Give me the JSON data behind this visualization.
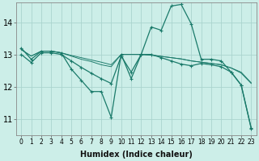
{
  "xlabel": "Humidex (Indice chaleur)",
  "bg_color": "#cceee8",
  "grid_color": "#aad4ce",
  "line_color": "#1a7a6a",
  "xlim": [
    -0.5,
    23.5
  ],
  "ylim": [
    10.5,
    14.6
  ],
  "yticks": [
    11,
    12,
    13,
    14
  ],
  "xticks": [
    0,
    1,
    2,
    3,
    4,
    5,
    6,
    7,
    8,
    9,
    10,
    11,
    12,
    13,
    14,
    15,
    16,
    17,
    18,
    19,
    20,
    21,
    22,
    23
  ],
  "series": {
    "line1": [
      13.2,
      12.85,
      13.1,
      13.1,
      13.05,
      12.55,
      12.2,
      11.85,
      11.85,
      11.05,
      13.0,
      12.25,
      13.0,
      13.85,
      13.75,
      14.5,
      14.55,
      13.95,
      12.85,
      12.85,
      12.8,
      12.45,
      12.05,
      10.7
    ],
    "line2": [
      13.15,
      12.95,
      13.1,
      13.1,
      13.05,
      12.95,
      12.85,
      12.78,
      12.68,
      12.62,
      13.0,
      13.0,
      13.0,
      12.98,
      12.94,
      12.9,
      12.86,
      12.8,
      12.76,
      12.72,
      12.68,
      12.58,
      12.42,
      12.1
    ],
    "line3": [
      13.15,
      12.95,
      13.1,
      13.1,
      13.05,
      12.97,
      12.9,
      12.83,
      12.76,
      12.68,
      13.0,
      13.0,
      13.0,
      12.98,
      12.94,
      12.9,
      12.86,
      12.8,
      12.76,
      12.72,
      12.68,
      12.58,
      12.45,
      12.12
    ],
    "line4": [
      13.0,
      12.75,
      13.05,
      13.05,
      13.0,
      12.8,
      12.6,
      12.42,
      12.25,
      12.1,
      12.95,
      12.45,
      13.0,
      13.0,
      12.9,
      12.8,
      12.7,
      12.65,
      12.72,
      12.68,
      12.62,
      12.45,
      12.05,
      10.72
    ]
  },
  "marker_size": 3.5,
  "line_width": 0.9,
  "label_fontsize": 6,
  "tick_fontsize": 5.5
}
